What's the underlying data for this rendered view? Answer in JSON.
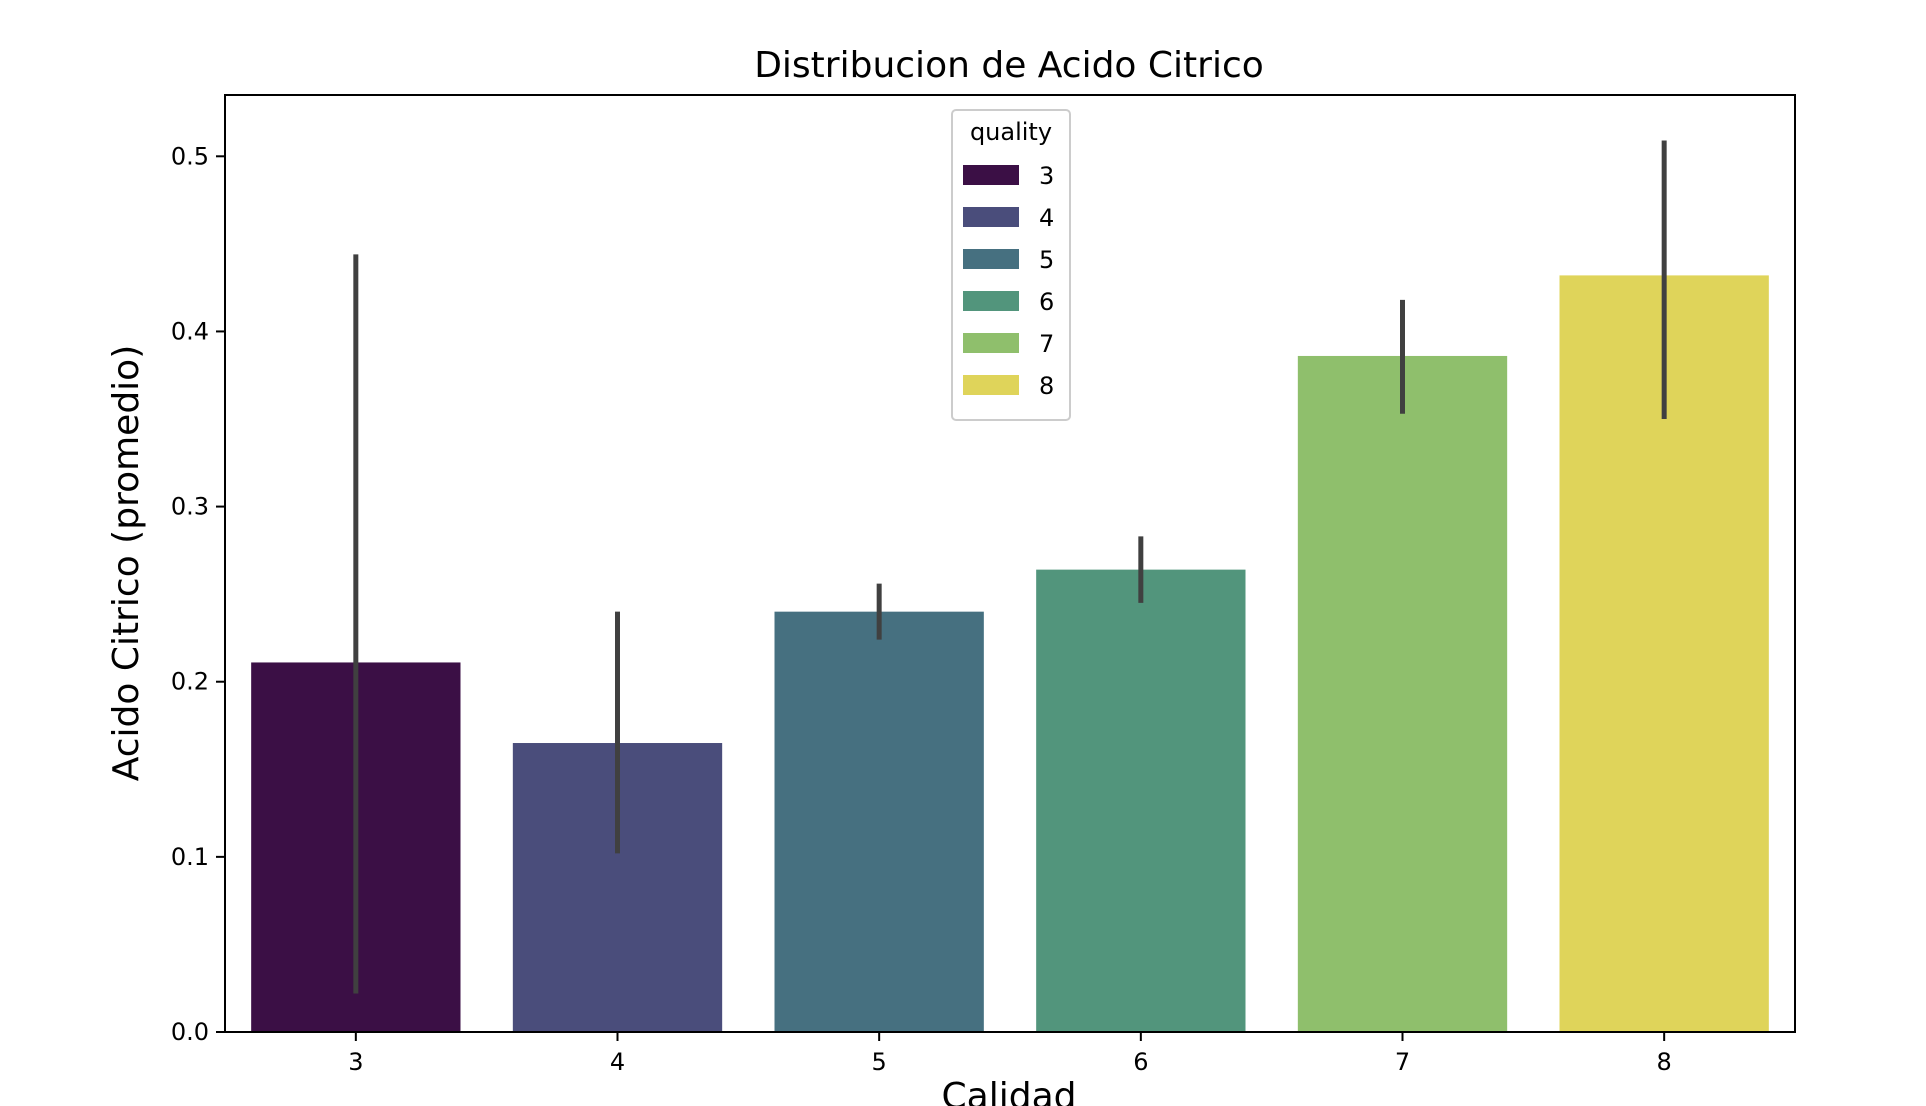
{
  "chart_data": {
    "type": "bar",
    "title": "Distribucion de Acido Citrico",
    "xlabel": "Calidad",
    "ylabel": "Acido Citrico (promedio)",
    "categories": [
      "3",
      "4",
      "5",
      "6",
      "7",
      "8"
    ],
    "values": [
      0.211,
      0.165,
      0.24,
      0.264,
      0.386,
      0.432
    ],
    "error_low": [
      0.022,
      0.102,
      0.224,
      0.245,
      0.353,
      0.35
    ],
    "error_high": [
      0.444,
      0.24,
      0.256,
      0.283,
      0.418,
      0.509
    ],
    "colors": [
      "#3b0f45",
      "#4a4d7b",
      "#467080",
      "#52957c",
      "#8fbf6c",
      "#dfd45a"
    ],
    "error_color": "#404040",
    "ylim": [
      0,
      0.535
    ],
    "yticks": [
      "0.0",
      "0.1",
      "0.2",
      "0.3",
      "0.4",
      "0.5"
    ],
    "ytick_values": [
      0,
      0.1,
      0.2,
      0.3,
      0.4,
      0.5
    ],
    "grid": false,
    "legend": {
      "title": "quality",
      "placement": "top-center",
      "entries": [
        "3",
        "4",
        "5",
        "6",
        "7",
        "8"
      ]
    }
  }
}
